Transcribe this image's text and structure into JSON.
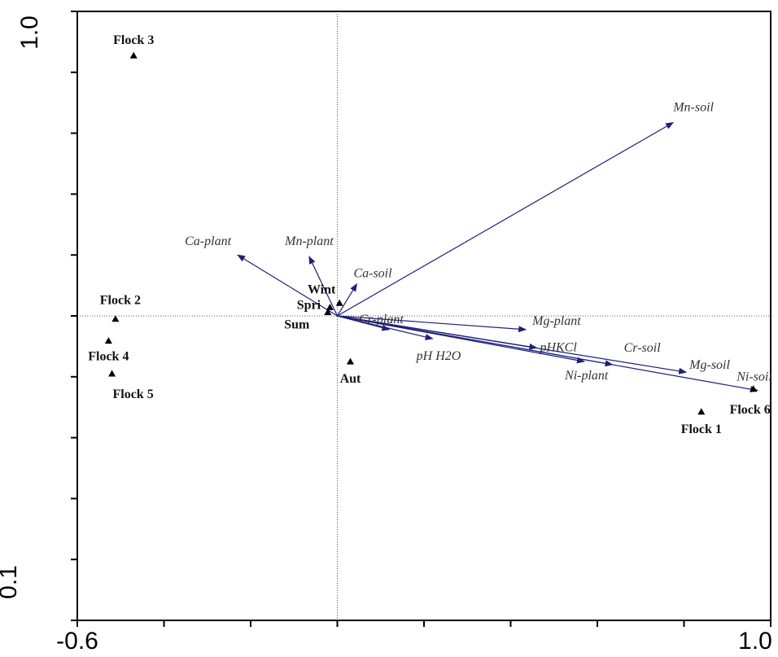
{
  "chart_data": {
    "type": "scatter",
    "subtype": "biplot",
    "title": "",
    "xlabel": "",
    "ylabel": "",
    "xlim": [
      -0.6,
      1.0
    ],
    "ylim": [
      -1.0,
      1.0
    ],
    "x_tick_labels": [
      "-0.6",
      "1.0"
    ],
    "y_tick_labels": [
      "1.0"
    ],
    "y_bottom_label_partial": "0.1",
    "grid": false,
    "origin_lines": true,
    "arrow_color": "#1f1f7a",
    "sites": [
      {
        "label": "Flock 3",
        "x": -0.47,
        "y": 0.855
      },
      {
        "label": "Flock 2",
        "x": -0.512,
        "y": -0.01
      },
      {
        "label": "Flock 4",
        "x": -0.528,
        "y": -0.082
      },
      {
        "label": "Flock 5",
        "x": -0.52,
        "y": -0.19
      },
      {
        "label": "Flock 6",
        "x": 0.96,
        "y": -0.24
      },
      {
        "label": "Flock 1",
        "x": 0.84,
        "y": -0.315
      },
      {
        "label": "Wint",
        "x": 0.005,
        "y": 0.042
      },
      {
        "label": "Spri",
        "x": -0.017,
        "y": 0.028
      },
      {
        "label": "Sum",
        "x": -0.022,
        "y": 0.012
      },
      {
        "label": "Aut",
        "x": 0.03,
        "y": -0.15
      }
    ],
    "vectors": [
      {
        "label": "Mn-soil",
        "x": 0.775,
        "y": 0.635
      },
      {
        "label": "Ca-plant",
        "x": -0.23,
        "y": 0.2
      },
      {
        "label": "Mn-plant",
        "x": -0.065,
        "y": 0.195
      },
      {
        "label": "Ca-soil",
        "x": 0.045,
        "y": 0.105
      },
      {
        "label": "Mg-plant",
        "x": 0.435,
        "y": -0.045
      },
      {
        "label": "pHKCl",
        "x": 0.46,
        "y": -0.105
      },
      {
        "label": "pH H2O",
        "x": 0.22,
        "y": -0.075
      },
      {
        "label": "Cr-plant",
        "x": 0.12,
        "y": -0.045
      },
      {
        "label": "Cr-soil",
        "x": 0.635,
        "y": -0.16
      },
      {
        "label": "Ni-plant",
        "x": 0.57,
        "y": -0.15
      },
      {
        "label": "Mg-soil",
        "x": 0.805,
        "y": -0.185
      },
      {
        "label": "Ni-soil",
        "x": 0.97,
        "y": -0.245
      }
    ]
  }
}
